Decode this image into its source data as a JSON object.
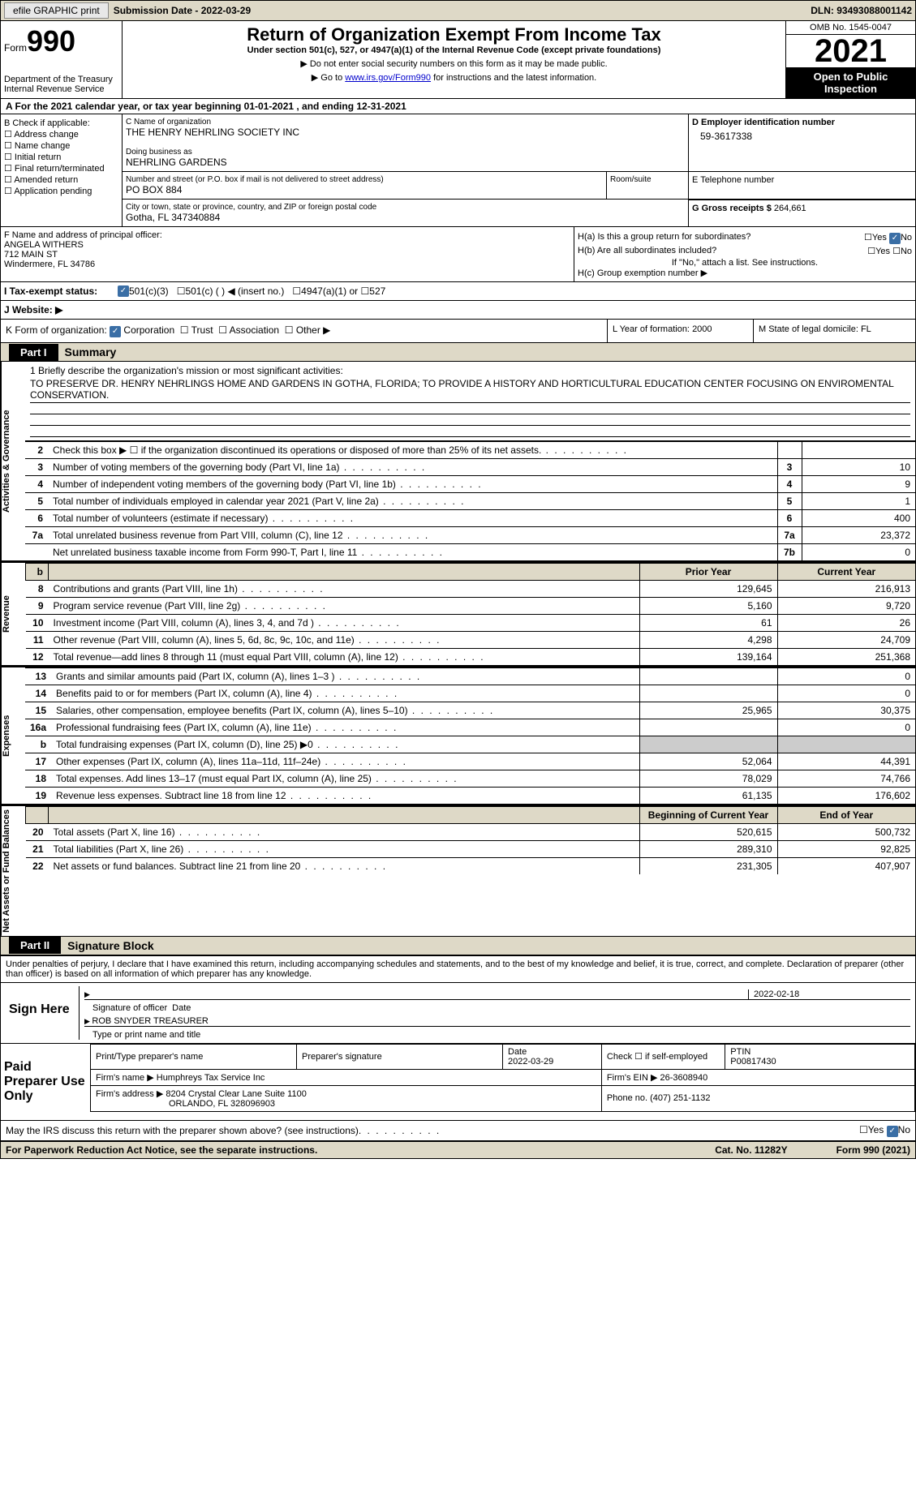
{
  "topbar": {
    "efile": "efile GRAPHIC print",
    "sub_label": "Submission Date - ",
    "sub_date": "2022-03-29",
    "dln": "DLN: 93493088001142"
  },
  "header": {
    "form_word": "Form",
    "form_num": "990",
    "dept": "Department of the Treasury",
    "irs": "Internal Revenue Service",
    "title": "Return of Organization Exempt From Income Tax",
    "sub": "Under section 501(c), 527, or 4947(a)(1) of the Internal Revenue Code (except private foundations)",
    "note1": "▶ Do not enter social security numbers on this form as it may be made public.",
    "note2_pre": "▶ Go to ",
    "note2_link": "www.irs.gov/Form990",
    "note2_post": " for instructions and the latest information.",
    "omb": "OMB No. 1545-0047",
    "year": "2021",
    "inspect": "Open to Public Inspection"
  },
  "row_a": "A For the 2021 calendar year, or tax year beginning 01-01-2021   , and ending 12-31-2021",
  "col_b": {
    "hdr": "B Check if applicable:",
    "items": [
      "Address change",
      "Name change",
      "Initial return",
      "Final return/terminated",
      "Amended return",
      "Application pending"
    ]
  },
  "col_c": {
    "name_lbl": "C Name of organization",
    "name": "THE HENRY NEHRLING SOCIETY INC",
    "dba_lbl": "Doing business as",
    "dba": "NEHRLING GARDENS",
    "addr_lbl": "Number and street (or P.O. box if mail is not delivered to street address)",
    "addr": "PO BOX 884",
    "room_lbl": "Room/suite",
    "city_lbl": "City or town, state or province, country, and ZIP or foreign postal code",
    "city": "Gotha, FL  347340884"
  },
  "col_d": {
    "lbl": "D Employer identification number",
    "val": "59-3617338"
  },
  "col_e": {
    "lbl": "E Telephone number"
  },
  "col_g": {
    "lbl": "G Gross receipts $",
    "val": "264,661"
  },
  "col_f": {
    "lbl": "F Name and address of principal officer:",
    "name": "ANGELA WITHERS",
    "addr1": "712 MAIN ST",
    "addr2": "Windermere, FL  34786"
  },
  "col_h": {
    "a": "H(a)  Is this a group return for subordinates?",
    "b": "H(b)  Are all subordinates included?",
    "b_note": "If \"No,\" attach a list. See instructions.",
    "c": "H(c)  Group exemption number ▶",
    "yes": "Yes",
    "no": "No"
  },
  "row_i": {
    "lbl": "I  Tax-exempt status:",
    "o1": "501(c)(3)",
    "o2": "501(c) (  ) ◀ (insert no.)",
    "o3": "4947(a)(1) or",
    "o4": "527"
  },
  "row_j": {
    "lbl": "J  Website: ▶"
  },
  "row_k": {
    "lbl": "K Form of organization:",
    "o1": "Corporation",
    "o2": "Trust",
    "o3": "Association",
    "o4": "Other ▶"
  },
  "row_l": {
    "lbl": "L Year of formation:",
    "val": "2000"
  },
  "row_m": {
    "lbl": "M State of legal domicile:",
    "val": "FL"
  },
  "part1": {
    "num": "Part I",
    "title": "Summary"
  },
  "mission": {
    "lbl": "1    Briefly describe the organization's mission or most significant activities:",
    "text": "TO PRESERVE DR. HENRY NEHRLINGS HOME AND GARDENS IN GOTHA, FLORIDA; TO PROVIDE A HISTORY AND HORTICULTURAL EDUCATION CENTER FOCUSING ON ENVIROMENTAL CONSERVATION."
  },
  "side": {
    "ag": "Activities & Governance",
    "rev": "Revenue",
    "exp": "Expenses",
    "na": "Net Assets or Fund Balances"
  },
  "lines_ag": [
    {
      "n": "2",
      "t": "Check this box ▶ ☐ if the organization discontinued its operations or disposed of more than 25% of its net assets.",
      "bn": "",
      "bv": ""
    },
    {
      "n": "3",
      "t": "Number of voting members of the governing body (Part VI, line 1a)",
      "bn": "3",
      "bv": "10"
    },
    {
      "n": "4",
      "t": "Number of independent voting members of the governing body (Part VI, line 1b)",
      "bn": "4",
      "bv": "9"
    },
    {
      "n": "5",
      "t": "Total number of individuals employed in calendar year 2021 (Part V, line 2a)",
      "bn": "5",
      "bv": "1"
    },
    {
      "n": "6",
      "t": "Total number of volunteers (estimate if necessary)",
      "bn": "6",
      "bv": "400"
    },
    {
      "n": "7a",
      "t": "Total unrelated business revenue from Part VIII, column (C), line 12",
      "bn": "7a",
      "bv": "23,372"
    },
    {
      "n": "",
      "t": "Net unrelated business taxable income from Form 990-T, Part I, line 11",
      "bn": "7b",
      "bv": "0"
    }
  ],
  "hdr2": {
    "py": "Prior Year",
    "cy": "Current Year"
  },
  "lines_rev": [
    {
      "n": "8",
      "t": "Contributions and grants (Part VIII, line 1h)",
      "py": "129,645",
      "cy": "216,913"
    },
    {
      "n": "9",
      "t": "Program service revenue (Part VIII, line 2g)",
      "py": "5,160",
      "cy": "9,720"
    },
    {
      "n": "10",
      "t": "Investment income (Part VIII, column (A), lines 3, 4, and 7d )",
      "py": "61",
      "cy": "26"
    },
    {
      "n": "11",
      "t": "Other revenue (Part VIII, column (A), lines 5, 6d, 8c, 9c, 10c, and 11e)",
      "py": "4,298",
      "cy": "24,709"
    },
    {
      "n": "12",
      "t": "Total revenue—add lines 8 through 11 (must equal Part VIII, column (A), line 12)",
      "py": "139,164",
      "cy": "251,368"
    }
  ],
  "lines_exp": [
    {
      "n": "13",
      "t": "Grants and similar amounts paid (Part IX, column (A), lines 1–3 )",
      "py": "",
      "cy": "0"
    },
    {
      "n": "14",
      "t": "Benefits paid to or for members (Part IX, column (A), line 4)",
      "py": "",
      "cy": "0"
    },
    {
      "n": "15",
      "t": "Salaries, other compensation, employee benefits (Part IX, column (A), lines 5–10)",
      "py": "25,965",
      "cy": "30,375"
    },
    {
      "n": "16a",
      "t": "Professional fundraising fees (Part IX, column (A), line 11e)",
      "py": "",
      "cy": "0"
    },
    {
      "n": "b",
      "t": "Total fundraising expenses (Part IX, column (D), line 25) ▶0",
      "py": "shade",
      "cy": "shade"
    },
    {
      "n": "17",
      "t": "Other expenses (Part IX, column (A), lines 11a–11d, 11f–24e)",
      "py": "52,064",
      "cy": "44,391"
    },
    {
      "n": "18",
      "t": "Total expenses. Add lines 13–17 (must equal Part IX, column (A), line 25)",
      "py": "78,029",
      "cy": "74,766"
    },
    {
      "n": "19",
      "t": "Revenue less expenses. Subtract line 18 from line 12",
      "py": "61,135",
      "cy": "176,602"
    }
  ],
  "hdr3": {
    "py": "Beginning of Current Year",
    "cy": "End of Year"
  },
  "lines_na": [
    {
      "n": "20",
      "t": "Total assets (Part X, line 16)",
      "py": "520,615",
      "cy": "500,732"
    },
    {
      "n": "21",
      "t": "Total liabilities (Part X, line 26)",
      "py": "289,310",
      "cy": "92,825"
    },
    {
      "n": "22",
      "t": "Net assets or fund balances. Subtract line 21 from line 20",
      "py": "231,305",
      "cy": "407,907"
    }
  ],
  "part2": {
    "num": "Part II",
    "title": "Signature Block"
  },
  "perjury": "Under penalties of perjury, I declare that I have examined this return, including accompanying schedules and statements, and to the best of my knowledge and belief, it is true, correct, and complete. Declaration of preparer (other than officer) is based on all information of which preparer has any knowledge.",
  "sign": {
    "here": "Sign Here",
    "sig_lbl": "Signature of officer",
    "date": "2022-02-18",
    "date_lbl": "Date",
    "name": "ROB SNYDER  TREASURER",
    "name_lbl": "Type or print name and title"
  },
  "prep": {
    "title": "Paid Preparer Use Only",
    "h1": "Print/Type preparer's name",
    "h2": "Preparer's signature",
    "h3_lbl": "Date",
    "h3": "2022-03-29",
    "h4": "Check ☐ if self-employed",
    "h5_lbl": "PTIN",
    "h5": "P00817430",
    "firm_lbl": "Firm's name    ▶",
    "firm": "Humphreys Tax Service Inc",
    "ein_lbl": "Firm's EIN ▶",
    "ein": "26-3608940",
    "addr_lbl": "Firm's address ▶",
    "addr1": "8204 Crystal Clear Lane Suite 1100",
    "addr2": "ORLANDO, FL  328096903",
    "phone_lbl": "Phone no.",
    "phone": "(407) 251-1132"
  },
  "may_irs": "May the IRS discuss this return with the preparer shown above? (see instructions)",
  "bottom": {
    "pra": "For Paperwork Reduction Act Notice, see the separate instructions.",
    "cat": "Cat. No. 11282Y",
    "form": "Form 990 (2021)"
  }
}
